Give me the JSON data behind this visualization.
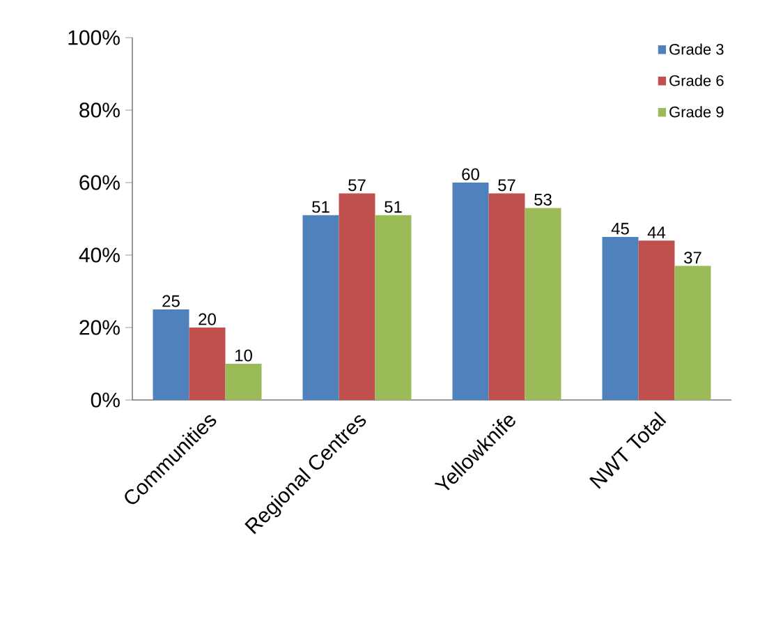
{
  "chart_data": {
    "type": "bar",
    "categories": [
      "Communities",
      "Regional Centres",
      "Yellowknife",
      "NWT Total"
    ],
    "series": [
      {
        "name": "Grade 3",
        "color": "#4f81bd",
        "values": [
          25,
          51,
          60,
          45
        ]
      },
      {
        "name": "Grade 6",
        "color": "#c0504d",
        "values": [
          20,
          57,
          57,
          44
        ]
      },
      {
        "name": "Grade 9",
        "color": "#9bbb59",
        "values": [
          10,
          51,
          53,
          37
        ]
      }
    ],
    "ylim": [
      0,
      100
    ],
    "yticks": [
      {
        "value": 0,
        "label": "0%"
      },
      {
        "value": 20,
        "label": "20%"
      },
      {
        "value": 40,
        "label": "40%"
      },
      {
        "value": 60,
        "label": "60%"
      },
      {
        "value": 80,
        "label": "80%"
      },
      {
        "value": 100,
        "label": "100%"
      }
    ],
    "data_labels": true,
    "legend": "top right",
    "grid": false
  }
}
